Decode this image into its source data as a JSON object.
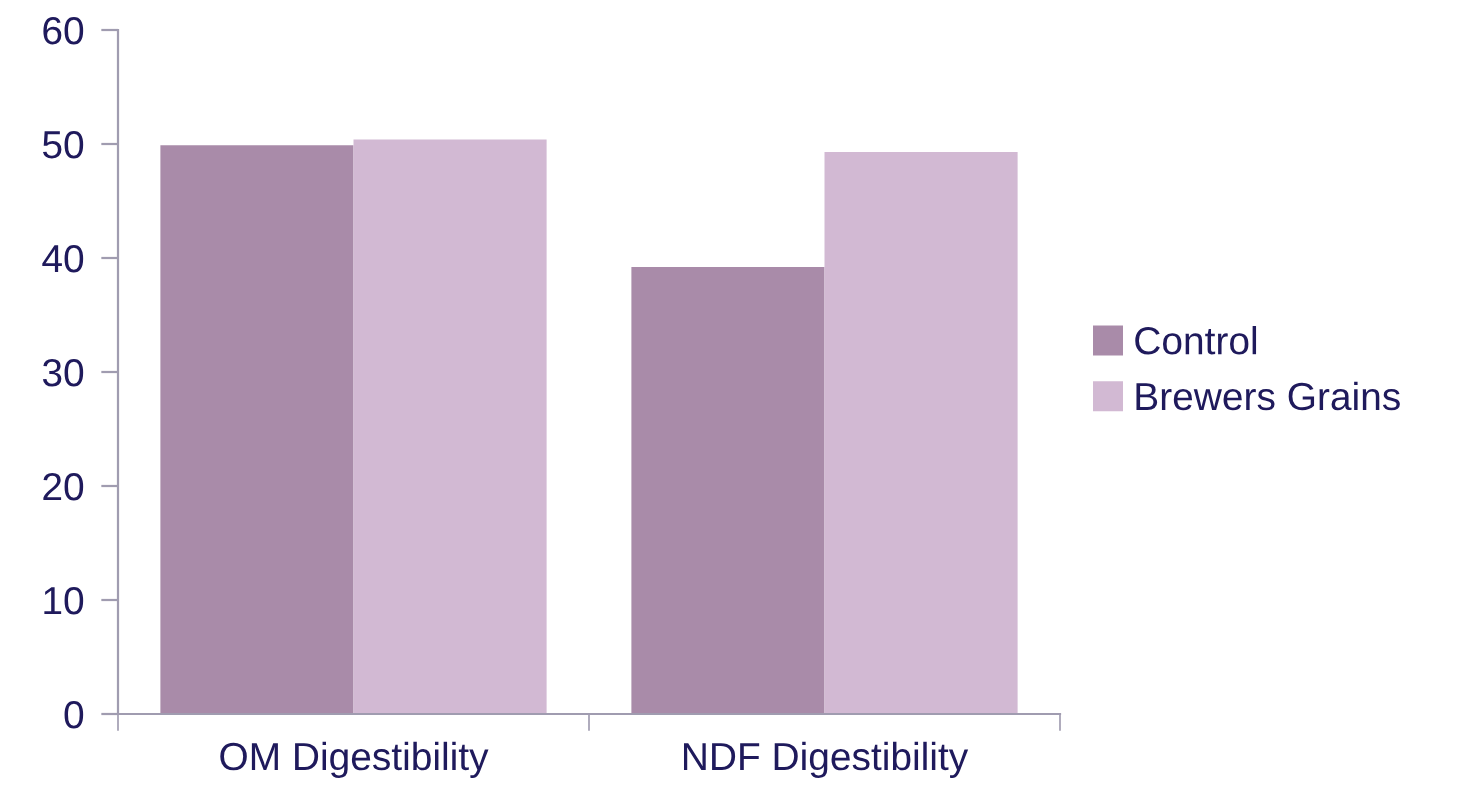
{
  "chart_data": {
    "type": "bar",
    "categories": [
      "OM Digestibility",
      "NDF Digestibility"
    ],
    "series": [
      {
        "name": "Control",
        "color": "#a98ba9",
        "values": [
          49.9,
          39.2
        ]
      },
      {
        "name": "Brewers Grains",
        "color": "#d2b9d3",
        "values": [
          50.4,
          49.3
        ]
      }
    ],
    "ylim": [
      0,
      60
    ],
    "yticks": [
      0,
      10,
      20,
      30,
      40,
      50,
      60
    ],
    "grid": false,
    "legend": "right"
  }
}
